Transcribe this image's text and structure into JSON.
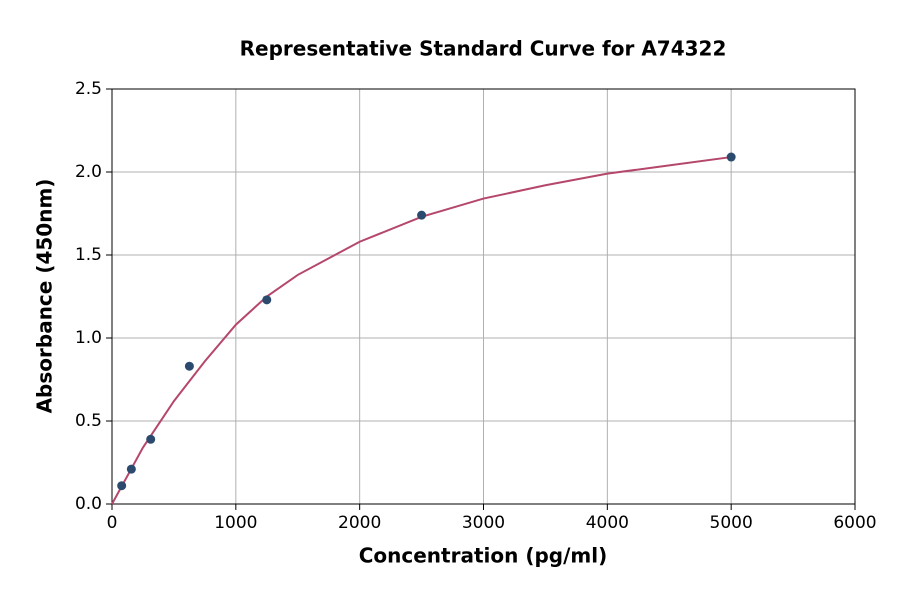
{
  "chart_data": {
    "type": "scatter",
    "title": "Representative Standard Curve for A74322",
    "xlabel": "Concentration (pg/ml)",
    "ylabel": "Absorbance (450nm)",
    "xlim": [
      0,
      6000
    ],
    "xticks": [
      0,
      1000,
      2000,
      3000,
      4000,
      5000,
      6000
    ],
    "ylim": [
      0,
      2.5
    ],
    "yticks": [
      {
        "value": 0,
        "label": "0.0"
      },
      0.5,
      {
        "value": 1,
        "label": "1.0"
      },
      1.5,
      {
        "value": 2,
        "label": "2.0"
      },
      2.5
    ],
    "grid": true,
    "series": [
      {
        "type": "line",
        "color": "#b5476a",
        "x": [
          0,
          250,
          500,
          750,
          1000,
          1250,
          1500,
          2000,
          2500,
          3000,
          3500,
          4000,
          4500,
          5000
        ],
        "values": [
          0,
          0.34,
          0.62,
          0.86,
          1.08,
          1.25,
          1.38,
          1.58,
          1.73,
          1.84,
          1.92,
          1.99,
          2.04,
          2.09
        ]
      },
      {
        "type": "scatter",
        "color": "#2c4a6e",
        "x": [
          78.125,
          156.25,
          312.5,
          625,
          1250,
          2500,
          5000
        ],
        "values": [
          0.11,
          0.21,
          0.39,
          0.83,
          1.23,
          1.74,
          2.09
        ]
      }
    ]
  }
}
